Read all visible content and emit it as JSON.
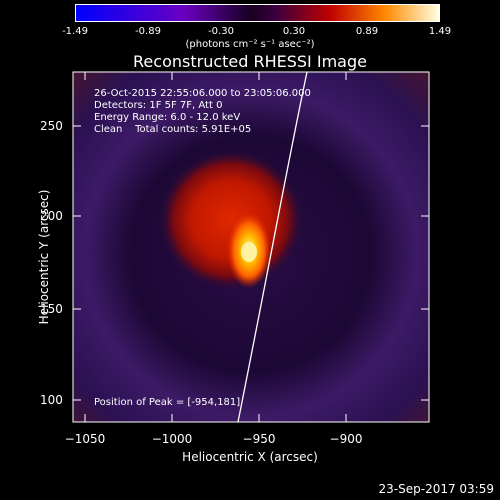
{
  "colorbar": {
    "ticks": [
      "-1.49",
      "-0.89",
      "-0.30",
      "0.30",
      "0.89",
      "1.49"
    ],
    "units": "(photons cm⁻² s⁻¹ asec⁻²)"
  },
  "title": "Reconstructed RHESSI Image",
  "info": {
    "line1": "26-Oct-2015 22:55:06.000 to 23:05:06.000",
    "line2": "Detectors: 1F 5F 7F, Att 0",
    "line3": "Energy Range: 6.0 - 12.0 keV",
    "line4": "Clean    Total counts: 5.91E+05",
    "peak": "Position of Peak = [-954,181]"
  },
  "axes": {
    "xlabel": "Heliocentric X (arcsec)",
    "ylabel": "Heliocentric Y (arcsec)",
    "xticks": [
      "−1050",
      "−1000",
      "−950",
      "−900"
    ],
    "yticks": [
      "250",
      "200",
      "150",
      "100"
    ]
  },
  "footer": "23-Sep-2017 03:59",
  "colors": {
    "background": "#000000",
    "halo": "#3a1560",
    "source": "#c81a00",
    "peak": "#fff3a0"
  }
}
